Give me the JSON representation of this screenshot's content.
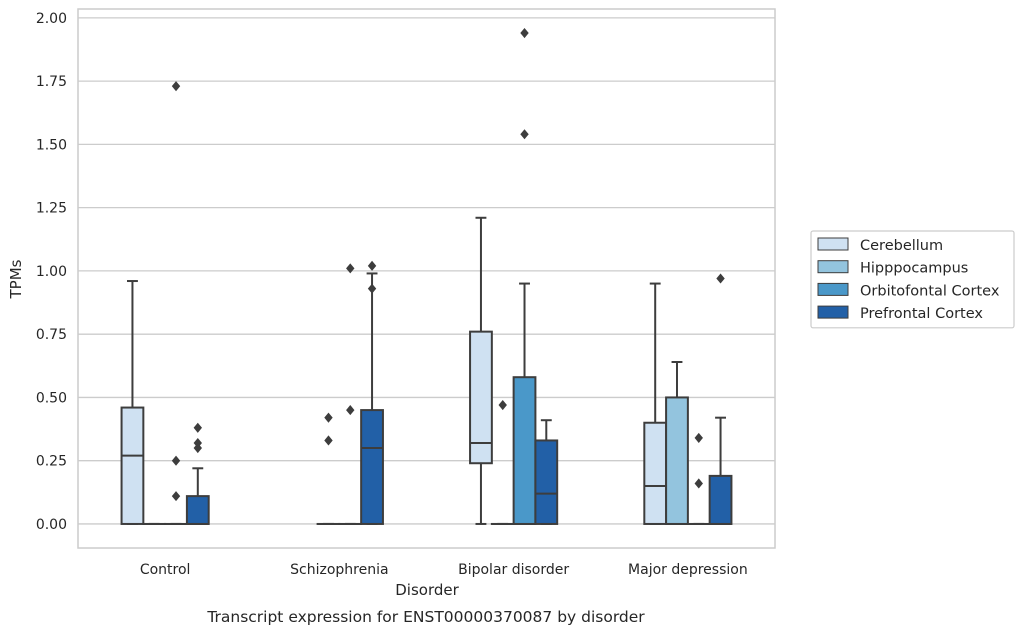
{
  "chart_data": {
    "type": "box",
    "caption": "Transcript expression for ENST00000370087 by disorder",
    "xlabel": "Disorder",
    "ylabel": "TPMs",
    "ylim": [
      -0.095,
      2.035
    ],
    "yticks": [
      0.0,
      0.25,
      0.5,
      0.75,
      1.0,
      1.25,
      1.5,
      1.75,
      2.0
    ],
    "ytick_labels": [
      "0.00",
      "0.25",
      "0.50",
      "0.75",
      "1.00",
      "1.25",
      "1.50",
      "1.75",
      "2.00"
    ],
    "grid": true,
    "legend_position": "right",
    "categories": [
      "Control",
      "Schizophrenia",
      "Bipolar disorder",
      "Major depression"
    ],
    "series": [
      {
        "name": "Cerebellum",
        "color": "#cfe1f2",
        "boxes": [
          {
            "q1": 0.0,
            "median": 0.27,
            "q3": 0.46,
            "whisker_low": 0.0,
            "whisker_high": 0.96,
            "outliers": []
          },
          null,
          {
            "q1": 0.24,
            "median": 0.32,
            "q3": 0.76,
            "whisker_low": 0.0,
            "whisker_high": 1.21,
            "outliers": []
          },
          {
            "q1": 0.0,
            "median": 0.15,
            "q3": 0.4,
            "whisker_low": 0.0,
            "whisker_high": 0.95,
            "outliers": []
          }
        ]
      },
      {
        "name": "Hipppocampus",
        "color": "#93c4de",
        "boxes": [
          {
            "q1": 0.0,
            "median": 0.0,
            "q3": 0.0,
            "whisker_low": 0.0,
            "whisker_high": 0.0,
            "outliers": []
          },
          {
            "q1": 0.0,
            "median": 0.0,
            "q3": 0.0,
            "whisker_low": 0.0,
            "whisker_high": 0.0,
            "outliers": [
              0.33,
              0.42
            ]
          },
          {
            "q1": 0.0,
            "median": 0.0,
            "q3": 0.0,
            "whisker_low": 0.0,
            "whisker_high": 0.0,
            "outliers": [
              0.47
            ]
          },
          {
            "q1": 0.0,
            "median": 0.0,
            "q3": 0.5,
            "whisker_low": 0.0,
            "whisker_high": 0.64,
            "outliers": []
          }
        ]
      },
      {
        "name": "Orbitofontal Cortex",
        "color": "#4a98c9",
        "boxes": [
          {
            "q1": 0.0,
            "median": 0.0,
            "q3": 0.0,
            "whisker_low": 0.0,
            "whisker_high": 0.0,
            "outliers": [
              0.11,
              0.25,
              1.73
            ]
          },
          {
            "q1": 0.0,
            "median": 0.0,
            "q3": 0.0,
            "whisker_low": 0.0,
            "whisker_high": 0.0,
            "outliers": [
              0.45,
              1.01
            ]
          },
          {
            "q1": 0.0,
            "median": 0.0,
            "q3": 0.58,
            "whisker_low": 0.0,
            "whisker_high": 0.95,
            "outliers": [
              1.54,
              1.94
            ]
          },
          {
            "q1": 0.0,
            "median": 0.0,
            "q3": 0.0,
            "whisker_low": 0.0,
            "whisker_high": 0.0,
            "outliers": [
              0.16,
              0.34
            ]
          }
        ]
      },
      {
        "name": "Prefrontal Cortex",
        "color": "#2260a7",
        "boxes": [
          {
            "q1": 0.0,
            "median": 0.0,
            "q3": 0.11,
            "whisker_low": 0.0,
            "whisker_high": 0.22,
            "outliers": [
              0.3,
              0.32,
              0.38
            ]
          },
          {
            "q1": 0.0,
            "median": 0.3,
            "q3": 0.45,
            "whisker_low": 0.0,
            "whisker_high": 0.99,
            "outliers": [
              0.93,
              1.02
            ]
          },
          {
            "q1": 0.0,
            "median": 0.12,
            "q3": 0.33,
            "whisker_low": 0.0,
            "whisker_high": 0.41,
            "outliers": []
          },
          {
            "q1": 0.0,
            "median": 0.0,
            "q3": 0.19,
            "whisker_low": 0.0,
            "whisker_high": 0.42,
            "outliers": [
              0.97
            ]
          }
        ]
      }
    ]
  }
}
